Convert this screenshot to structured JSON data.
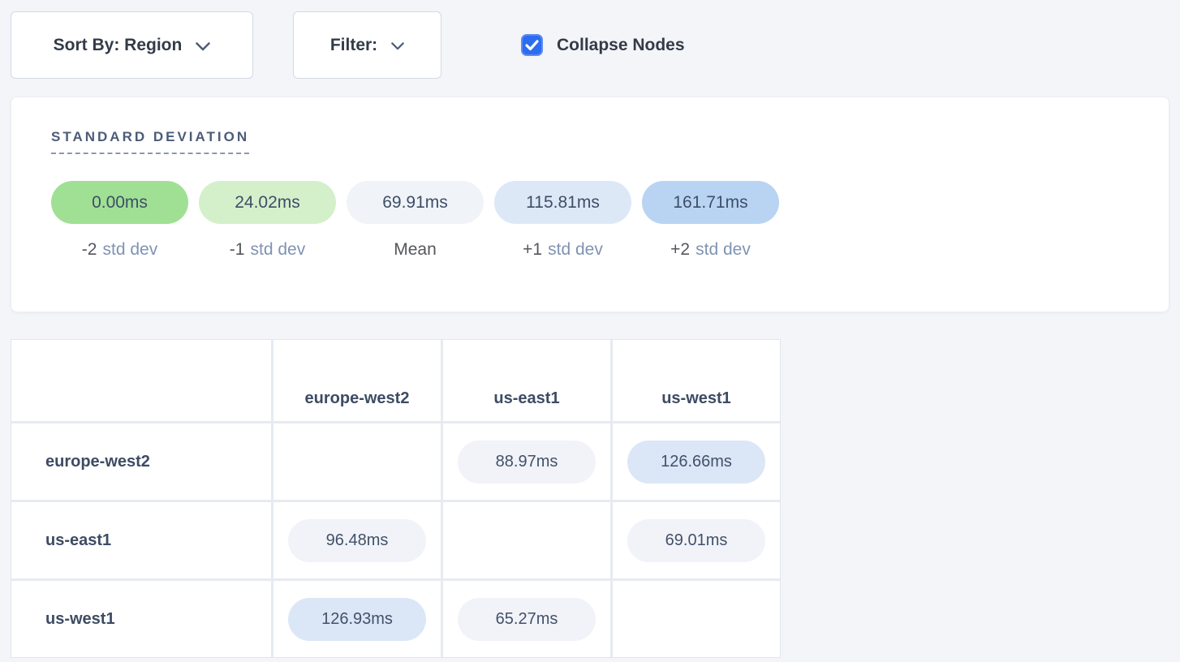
{
  "toolbar": {
    "sort_by": {
      "label": "Sort By: Region",
      "icon": "chevron-down-icon"
    },
    "filter": {
      "label": "Filter:",
      "icon": "chevron-down-icon"
    },
    "collapse_nodes": {
      "label": "Collapse Nodes",
      "checked": true,
      "checkbox_color": "#2c6cf0"
    }
  },
  "legend": {
    "title": "STANDARD DEVIATION",
    "items": [
      {
        "value": "0.00ms",
        "prefix": "-2",
        "suffix": "std dev",
        "color": "#a0e095"
      },
      {
        "value": "24.02ms",
        "prefix": "-1",
        "suffix": "std dev",
        "color": "#d4f0cb"
      },
      {
        "value": "69.91ms",
        "prefix": "Mean",
        "suffix": "",
        "color": "#f0f3f8"
      },
      {
        "value": "115.81ms",
        "prefix": "+1",
        "suffix": "std dev",
        "color": "#dde8f7"
      },
      {
        "value": "161.71ms",
        "prefix": "+2",
        "suffix": "std dev",
        "color": "#b9d4f3"
      }
    ]
  },
  "matrix": {
    "columns": [
      "europe-west2",
      "us-east1",
      "us-west1"
    ],
    "rows": [
      {
        "label": "europe-west2",
        "cells": [
          null,
          {
            "value": "88.97ms",
            "tone": "neutral"
          },
          {
            "value": "126.66ms",
            "tone": "blue"
          }
        ]
      },
      {
        "label": "us-east1",
        "cells": [
          {
            "value": "96.48ms",
            "tone": "neutral"
          },
          null,
          {
            "value": "69.01ms",
            "tone": "neutral"
          }
        ]
      },
      {
        "label": "us-west1",
        "cells": [
          {
            "value": "126.93ms",
            "tone": "blue"
          },
          {
            "value": "65.27ms",
            "tone": "neutral"
          },
          null
        ]
      }
    ],
    "tone_colors": {
      "neutral": "#f1f3f8",
      "blue": "#dbe7f7"
    }
  }
}
